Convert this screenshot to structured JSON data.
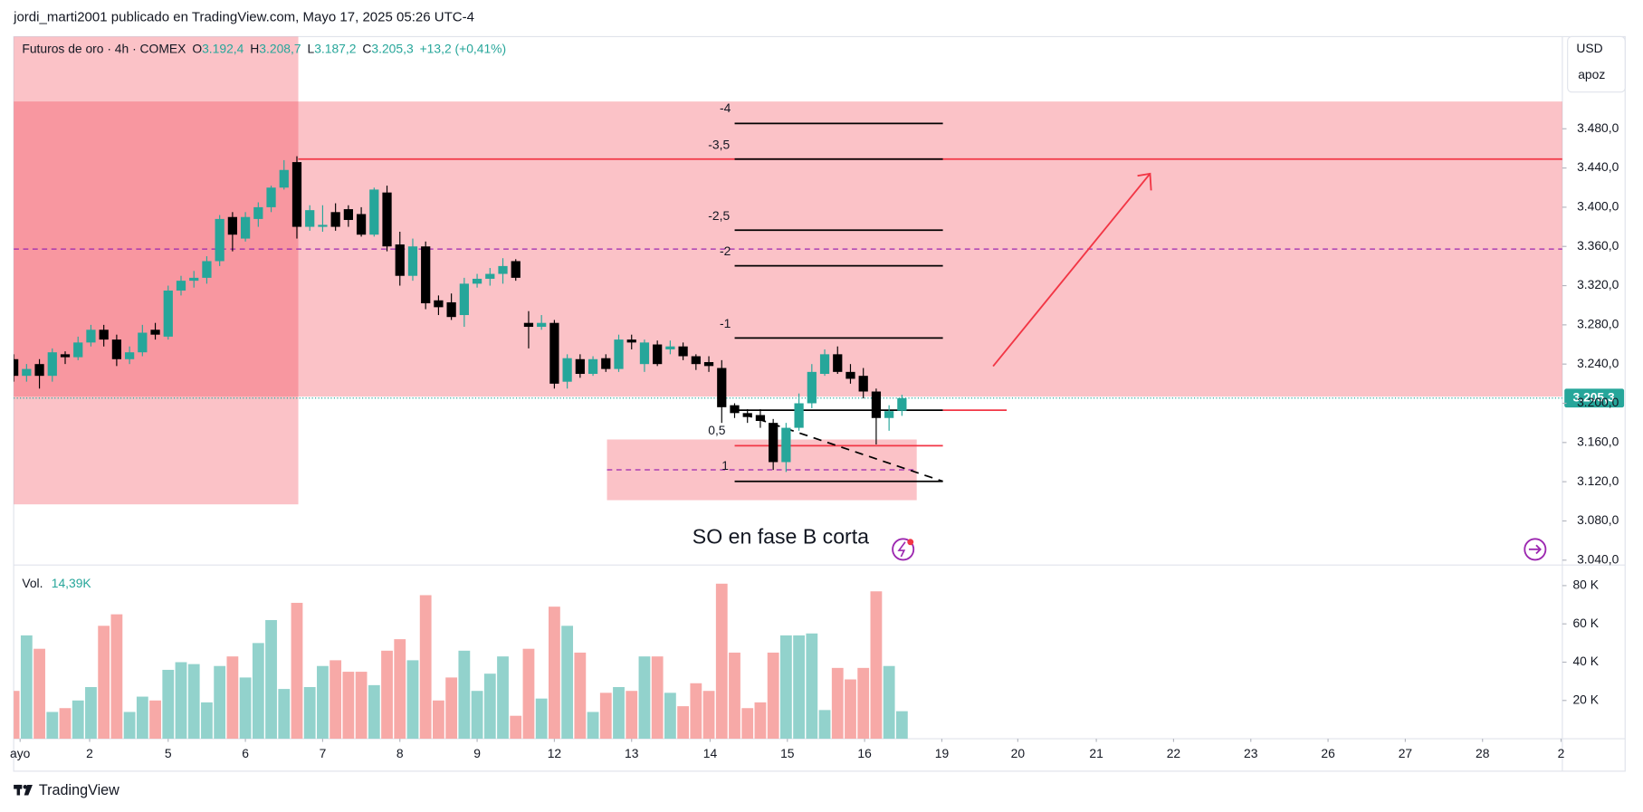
{
  "header": {
    "publisher": "jordi_marti2001 publicado en TradingView.com, Mayo 17, 2025 05:26 UTC-4"
  },
  "chart_data": {
    "type": "candlestick",
    "title": "Futuros de oro · 4h · COMEX",
    "ohlc_legend": [
      {
        "key": "O",
        "label": "3.192,4"
      },
      {
        "key": "H",
        "label": "3.208,7"
      },
      {
        "key": "L",
        "label": "3.187,2"
      },
      {
        "key": "C",
        "label": "3.205,3"
      }
    ],
    "change_label": "+13,2 (+0,41%)",
    "open": [
      3245,
      3228,
      3240,
      3228,
      3250,
      3247,
      3262,
      3275,
      3265,
      3245,
      3252,
      3275,
      3268,
      3315,
      3325,
      3328,
      3345,
      3390,
      3368,
      3388,
      3400,
      3420,
      3446,
      3380,
      3380,
      3395,
      3398,
      3393,
      3372,
      3415,
      3362,
      3330,
      3360,
      3305,
      3303,
      3290,
      3322,
      3327,
      3332,
      3345,
      3282,
      3278,
      3282,
      3222,
      3245,
      3230,
      3246,
      3235,
      3265,
      3240,
      3260,
      3255,
      3258,
      3248,
      3242,
      3236,
      3198,
      3190,
      3188,
      3180,
      3140,
      3175,
      3200,
      3230,
      3250,
      3232,
      3228,
      3212,
      3185,
      3192.4
    ],
    "high": [
      3250,
      3240,
      3245,
      3256,
      3253,
      3268,
      3280,
      3280,
      3270,
      3258,
      3280,
      3282,
      3320,
      3330,
      3335,
      3350,
      3392,
      3395,
      3395,
      3405,
      3422,
      3448,
      3452,
      3402,
      3402,
      3404,
      3402,
      3400,
      3420,
      3422,
      3375,
      3368,
      3365,
      3310,
      3312,
      3328,
      3332,
      3338,
      3348,
      3347,
      3294,
      3290,
      3285,
      3250,
      3250,
      3248,
      3250,
      3270,
      3270,
      3265,
      3264,
      3264,
      3262,
      3250,
      3248,
      3244,
      3200,
      3194,
      3194,
      3184,
      3180,
      3210,
      3240,
      3255,
      3258,
      3240,
      3236,
      3215,
      3198,
      3208.7
    ],
    "low": [
      3222,
      3222,
      3215,
      3222,
      3240,
      3244,
      3258,
      3258,
      3238,
      3240,
      3248,
      3265,
      3265,
      3310,
      3318,
      3322,
      3340,
      3355,
      3365,
      3380,
      3395,
      3418,
      3368,
      3376,
      3375,
      3376,
      3380,
      3370,
      3370,
      3355,
      3320,
      3325,
      3296,
      3290,
      3285,
      3278,
      3318,
      3320,
      3322,
      3325,
      3256,
      3275,
      3215,
      3215,
      3226,
      3228,
      3232,
      3232,
      3255,
      3232,
      3238,
      3250,
      3244,
      3234,
      3232,
      3180,
      3185,
      3180,
      3175,
      3132,
      3130,
      3172,
      3195,
      3228,
      3230,
      3220,
      3205,
      3158,
      3172,
      3187.2
    ],
    "close": [
      3228,
      3235,
      3228,
      3252,
      3247,
      3262,
      3275,
      3265,
      3245,
      3252,
      3272,
      3270,
      3315,
      3325,
      3328,
      3345,
      3388,
      3372,
      3390,
      3400,
      3420,
      3438,
      3380,
      3397,
      3382,
      3380,
      3387,
      3372,
      3418,
      3360,
      3330,
      3360,
      3302,
      3298,
      3288,
      3322,
      3327,
      3332,
      3340,
      3328,
      3278,
      3282,
      3220,
      3246,
      3230,
      3245,
      3235,
      3265,
      3262,
      3262,
      3240,
      3258,
      3248,
      3240,
      3238,
      3196,
      3190,
      3186,
      3182,
      3140,
      3175,
      3200,
      3232,
      3250,
      3232,
      3225,
      3212,
      3185,
      3192,
      3205.3
    ],
    "up_color": "#26a69a",
    "down_color": "#000000",
    "last_price": 3205.3,
    "last_price_label": "3.205,3",
    "ylim": [
      3035,
      3574
    ],
    "yticks": [
      {
        "value": 3040,
        "label": "3.040,0"
      },
      {
        "value": 3080,
        "label": "3.080,0"
      },
      {
        "value": 3120,
        "label": "3.120,0"
      },
      {
        "value": 3160,
        "label": "3.160,0"
      },
      {
        "value": 3200,
        "label": "3.200,0"
      },
      {
        "value": 3240,
        "label": "3.240,0"
      },
      {
        "value": 3280,
        "label": "3.280,0"
      },
      {
        "value": 3320,
        "label": "3.320,0"
      },
      {
        "value": 3360,
        "label": "3.360,0"
      },
      {
        "value": 3400,
        "label": "3.400,0"
      },
      {
        "value": 3440,
        "label": "3.440,0"
      },
      {
        "value": 3480,
        "label": "3.480,0"
      }
    ],
    "xlim": [
      0,
      120.3
    ],
    "xticks": [
      {
        "value": 0.5,
        "label": "ayo"
      },
      {
        "value": 5.9,
        "label": "2"
      },
      {
        "value": 12,
        "label": "5"
      },
      {
        "value": 18,
        "label": "6"
      },
      {
        "value": 24,
        "label": "7"
      },
      {
        "value": 30,
        "label": "8"
      },
      {
        "value": 36,
        "label": "9"
      },
      {
        "value": 42,
        "label": "12"
      },
      {
        "value": 48,
        "label": "13"
      },
      {
        "value": 54.1,
        "label": "14"
      },
      {
        "value": 60.1,
        "label": "15"
      },
      {
        "value": 66.1,
        "label": "16"
      },
      {
        "value": 72.1,
        "label": "19"
      },
      {
        "value": 78,
        "label": "20"
      },
      {
        "value": 84.1,
        "label": "21"
      },
      {
        "value": 90.1,
        "label": "22"
      },
      {
        "value": 96.1,
        "label": "23"
      },
      {
        "value": 102.1,
        "label": "26"
      },
      {
        "value": 108.1,
        "label": "27"
      },
      {
        "value": 114.1,
        "label": "28"
      },
      {
        "value": 120.2,
        "label": "2"
      }
    ],
    "currency": "USD",
    "scale_mode": "apoz",
    "volume": {
      "label": "Vol.",
      "last_label": "14,39K",
      "values": [
        25000,
        54000,
        47000,
        14000,
        16000,
        20000,
        27000,
        59000,
        65000,
        14000,
        22000,
        20000,
        36000,
        40000,
        39000,
        19000,
        38000,
        43000,
        32000,
        50000,
        62000,
        26000,
        71000,
        27000,
        38000,
        41000,
        35000,
        35000,
        28000,
        46000,
        52000,
        41000,
        75000,
        20000,
        32000,
        46000,
        25000,
        34000,
        43000,
        12000,
        47000,
        21000,
        69000,
        59000,
        45000,
        14000,
        24000,
        27000,
        25000,
        43000,
        43000,
        24000,
        17000,
        29000,
        25000,
        81000,
        45000,
        16000,
        19000,
        45000,
        54000,
        54000,
        55000,
        15000,
        37000,
        31000,
        37000,
        77000,
        38000,
        14390
      ],
      "up_color": "#92d2cc",
      "down_color": "#f7a9a7",
      "ylim": [
        0,
        88000
      ],
      "yticks": [
        {
          "value": 20000,
          "label": "20 K"
        },
        {
          "value": 40000,
          "label": "40 K"
        },
        {
          "value": 60000,
          "label": "60 K"
        },
        {
          "value": 80000,
          "label": "80 K"
        }
      ]
    }
  },
  "annotations": {
    "fib_labels": [
      "-4",
      "-3,5",
      "-2,5",
      "-2",
      "-1",
      "0,5",
      "1"
    ],
    "note": "SO en fase B corta"
  },
  "footer": {
    "brand": "TradingView"
  }
}
